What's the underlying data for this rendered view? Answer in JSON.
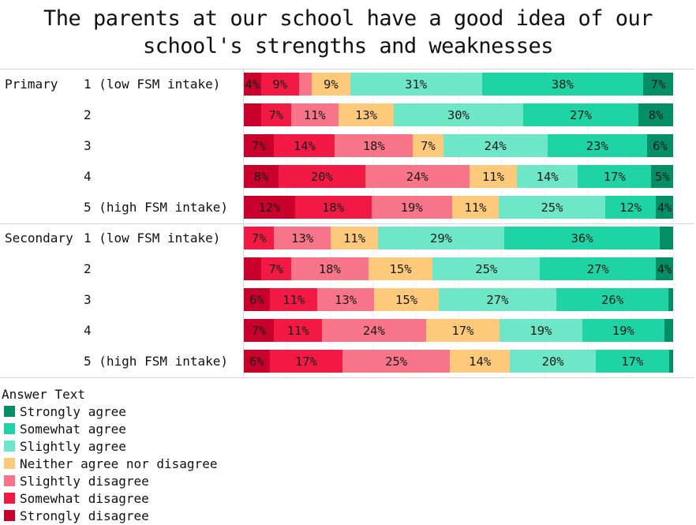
{
  "chart_data": {
    "type": "bar",
    "orientation": "horizontal-stacked-100",
    "title": "The parents at our school have a good idea of our school's strengths and weaknesses",
    "title_lines": [
      "The parents at our school have a good idea of our",
      "school's strengths and weaknesses"
    ],
    "legend_title": "Answer Text",
    "legend_position": "bottom-left",
    "series": [
      {
        "name": "Strongly disagree",
        "color": "#c8002b"
      },
      {
        "name": "Somewhat disagree",
        "color": "#f21a45"
      },
      {
        "name": "Slightly disagree",
        "color": "#f87589"
      },
      {
        "name": "Neither agree nor disagree",
        "color": "#fdc97a"
      },
      {
        "name": "Slightly agree",
        "color": "#6ee6c8"
      },
      {
        "name": "Somewhat agree",
        "color": "#1fd4a4"
      },
      {
        "name": "Strongly agree",
        "color": "#048e65"
      }
    ],
    "legend_order": [
      "Strongly agree",
      "Somewhat agree",
      "Slightly agree",
      "Neither agree nor disagree",
      "Slightly disagree",
      "Somewhat disagree",
      "Strongly disagree"
    ],
    "groups": [
      {
        "name": "Primary",
        "rows": [
          {
            "label": "1 (low FSM intake)",
            "values": [
              4,
              9,
              3,
              9,
              31,
              38,
              7
            ],
            "labels": [
              "4%",
              "9%",
              "",
              "9%",
              "31%",
              "38%",
              "7%"
            ]
          },
          {
            "label": "2",
            "values": [
              4,
              7,
              11,
              13,
              30,
              27,
              8
            ],
            "labels": [
              "",
              "7%",
              "11%",
              "13%",
              "30%",
              "27%",
              "8%"
            ]
          },
          {
            "label": "3",
            "values": [
              7,
              14,
              18,
              7,
              24,
              23,
              6
            ],
            "labels": [
              "7%",
              "14%",
              "18%",
              "7%",
              "24%",
              "23%",
              "6%"
            ]
          },
          {
            "label": "4",
            "values": [
              8,
              20,
              24,
              11,
              14,
              17,
              5
            ],
            "labels": [
              "8%",
              "20%",
              "24%",
              "11%",
              "14%",
              "17%",
              "5%"
            ]
          },
          {
            "label": "5 (high FSM intake)",
            "values": [
              12,
              18,
              19,
              11,
              25,
              12,
              4
            ],
            "labels": [
              "12%",
              "18%",
              "19%",
              "11%",
              "25%",
              "12%",
              "4%"
            ]
          }
        ]
      },
      {
        "name": "Secondary",
        "rows": [
          {
            "label": "1 (low FSM intake)",
            "values": [
              0,
              7,
              13,
              11,
              29,
              36,
              3
            ],
            "labels": [
              "",
              "7%",
              "13%",
              "11%",
              "29%",
              "36%",
              ""
            ]
          },
          {
            "label": "2",
            "values": [
              4,
              7,
              18,
              15,
              25,
              27,
              4
            ],
            "labels": [
              "",
              "7%",
              "18%",
              "15%",
              "25%",
              "27%",
              "4%"
            ]
          },
          {
            "label": "3",
            "values": [
              6,
              11,
              13,
              15,
              27,
              26,
              1
            ],
            "labels": [
              "6%",
              "11%",
              "13%",
              "15%",
              "27%",
              "26%",
              ""
            ]
          },
          {
            "label": "4",
            "values": [
              7,
              11,
              24,
              17,
              19,
              19,
              2
            ],
            "labels": [
              "7%",
              "11%",
              "24%",
              "17%",
              "19%",
              "19%",
              ""
            ]
          },
          {
            "label": "5 (high FSM intake)",
            "values": [
              6,
              17,
              25,
              14,
              20,
              17,
              1
            ],
            "labels": [
              "6%",
              "17%",
              "25%",
              "14%",
              "20%",
              "17%",
              ""
            ]
          }
        ]
      }
    ],
    "xlim": [
      0,
      100
    ],
    "grid": true
  }
}
